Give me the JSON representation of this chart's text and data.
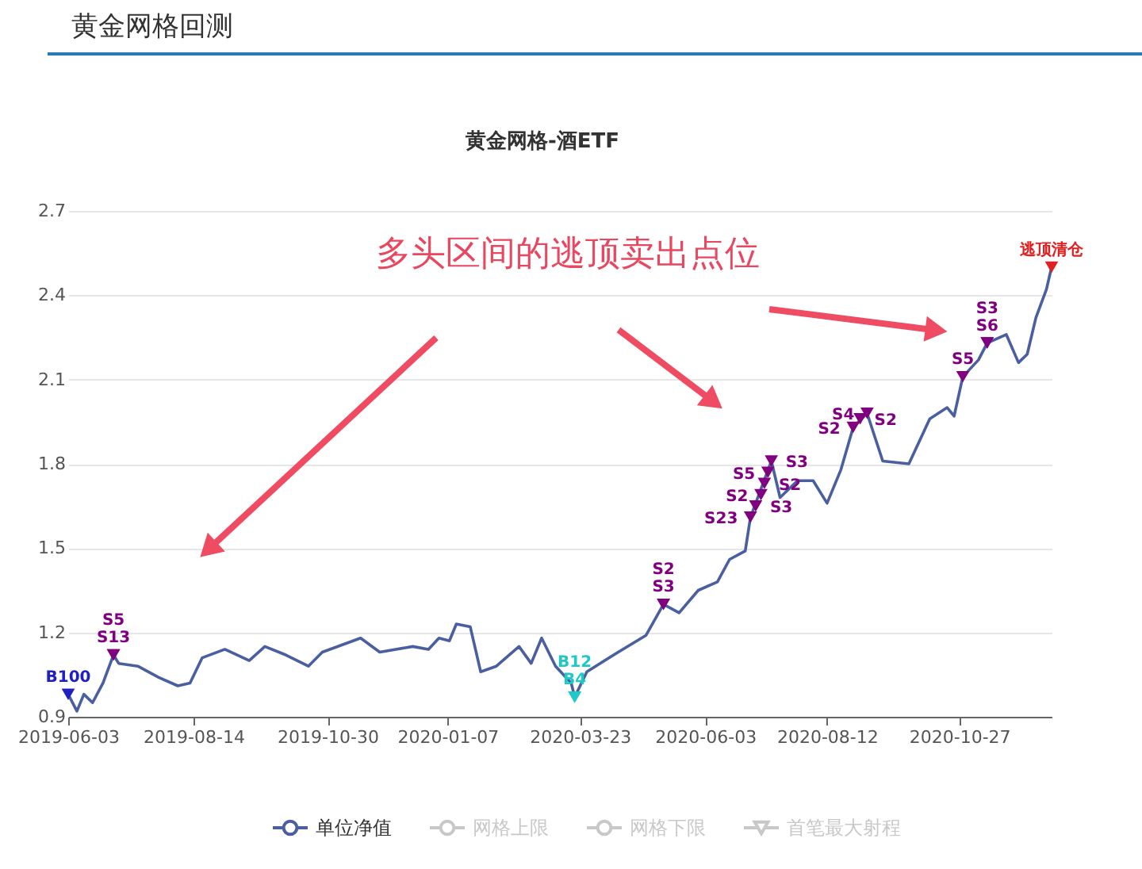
{
  "chart_data": {
    "type": "line",
    "title": "黄金网格回测",
    "subtitle": "黄金网格-酒ETF",
    "annotations": [
      "多头区间的逃顶卖出点位"
    ],
    "x": [
      "2019-06-03",
      "2019-06-08",
      "2019-06-12",
      "2019-06-17",
      "2019-06-23",
      "2019-06-29",
      "2019-07-02",
      "2019-07-13",
      "2019-07-25",
      "2019-08-05",
      "2019-08-12",
      "2019-08-19",
      "2019-09-01",
      "2019-09-15",
      "2019-09-24",
      "2019-10-06",
      "2019-10-19",
      "2019-10-27",
      "2019-11-18",
      "2019-11-29",
      "2019-12-18",
      "2019-12-27",
      "2020-01-02",
      "2020-01-08",
      "2020-01-12",
      "2020-01-20",
      "2020-01-26",
      "2020-02-04",
      "2020-02-17",
      "2020-02-24",
      "2020-03-01",
      "2020-03-09",
      "2020-03-18",
      "2020-03-20",
      "2020-03-27",
      "2020-04-14",
      "2020-04-30",
      "2020-05-10",
      "2020-05-19",
      "2020-05-30",
      "2020-06-10",
      "2020-06-17",
      "2020-06-26",
      "2020-06-29",
      "2020-07-11",
      "2020-07-16",
      "2020-07-26",
      "2020-08-04",
      "2020-08-12",
      "2020-08-20",
      "2020-08-27",
      "2020-09-04",
      "2020-09-13",
      "2020-09-28",
      "2020-10-10",
      "2020-10-20",
      "2020-10-24",
      "2020-10-29",
      "2020-11-07",
      "2020-11-12",
      "2020-11-23",
      "2020-11-30",
      "2020-12-05",
      "2020-12-10",
      "2020-12-16",
      "2020-12-19"
    ],
    "series": [
      {
        "name": "单位净值",
        "color": "#4a5fa0",
        "values": [
          0.98,
          0.92,
          0.98,
          0.95,
          1.02,
          1.12,
          1.09,
          1.08,
          1.04,
          1.01,
          1.02,
          1.11,
          1.14,
          1.1,
          1.15,
          1.12,
          1.08,
          1.13,
          1.18,
          1.13,
          1.15,
          1.14,
          1.18,
          1.17,
          1.23,
          1.22,
          1.06,
          1.08,
          1.15,
          1.09,
          1.18,
          1.08,
          1.02,
          0.97,
          1.06,
          1.13,
          1.19,
          1.3,
          1.27,
          1.35,
          1.38,
          1.46,
          1.49,
          1.61,
          1.81,
          1.68,
          1.74,
          1.74,
          1.66,
          1.78,
          1.93,
          1.98,
          1.81,
          1.8,
          1.96,
          2.0,
          1.97,
          2.11,
          2.17,
          2.23,
          2.26,
          2.16,
          2.19,
          2.32,
          2.42,
          2.5
        ]
      },
      {
        "name": "网格上限",
        "type": "line",
        "color": "#c8c8c8",
        "marker": "circle",
        "values": [
          null,
          null,
          null,
          null,
          null,
          null,
          null,
          null,
          null,
          null,
          null,
          null,
          null,
          null,
          null,
          null,
          null,
          null,
          null,
          null,
          null,
          null,
          null,
          null,
          null,
          null,
          null,
          null,
          null,
          null,
          null,
          null,
          null,
          null,
          null,
          null,
          null,
          null,
          null,
          null,
          null,
          null,
          null,
          null,
          null,
          null,
          null,
          null,
          null,
          null,
          null,
          null,
          null,
          null,
          null,
          null,
          null,
          null,
          null,
          null,
          null,
          null,
          null,
          null,
          null,
          null
        ]
      },
      {
        "name": "网格下限",
        "type": "line",
        "color": "#c8c8c8",
        "marker": "circle",
        "values": [
          null,
          null,
          null,
          null,
          null,
          null,
          null,
          null,
          null,
          null,
          null,
          null,
          null,
          null,
          null,
          null,
          null,
          null,
          null,
          null,
          null,
          null,
          null,
          null,
          null,
          null,
          null,
          null,
          null,
          null,
          null,
          null,
          null,
          null,
          null,
          null,
          null,
          null,
          null,
          null,
          null,
          null,
          null,
          null,
          null,
          null,
          null,
          null,
          null,
          null,
          null,
          null,
          null,
          null,
          null,
          null,
          null,
          null,
          null,
          null,
          null,
          null,
          null,
          null,
          null,
          null
        ]
      },
      {
        "name": "首笔最大射程",
        "type": "line",
        "color": "#c8c8c8",
        "marker": "triangle",
        "values": [
          null,
          null,
          null,
          null,
          null,
          null,
          null,
          null,
          null,
          null,
          null,
          null,
          null,
          null,
          null,
          null,
          null,
          null,
          null,
          null,
          null,
          null,
          null,
          null,
          null,
          null,
          null,
          null,
          null,
          null,
          null,
          null,
          null,
          null,
          null,
          null,
          null,
          null,
          null,
          null,
          null,
          null,
          null,
          null,
          null,
          null,
          null,
          null,
          null,
          null,
          null,
          null,
          null,
          null,
          null,
          null,
          null,
          null,
          null,
          null,
          null,
          null,
          null,
          null,
          null,
          null
        ]
      },
      {
        "type": "scatter",
        "color": "#2020c0",
        "marker": "triangle",
        "x": [
          "2019-06-03"
        ],
        "values": [
          0.98
        ],
        "value_labels": [
          "B100"
        ]
      },
      {
        "type": "scatter",
        "color": "#800080",
        "marker": "triangle",
        "x": [
          "2019-06-29",
          "2019-06-29",
          "2020-05-10",
          "2020-05-10",
          "2020-06-29",
          "2020-07-02",
          "2020-07-05",
          "2020-07-07",
          "2020-07-09",
          "2020-07-11",
          "2020-08-27",
          "2020-08-31",
          "2020-09-04",
          "2020-10-29",
          "2020-11-12",
          "2020-11-12"
        ],
        "values": [
          1.12,
          1.12,
          1.3,
          1.3,
          1.61,
          1.65,
          1.69,
          1.73,
          1.77,
          1.81,
          1.93,
          1.96,
          1.98,
          2.11,
          2.23,
          2.23
        ],
        "value_labels": [
          "S13",
          "S5",
          "S3",
          "S2",
          "S23",
          "S3",
          "S2",
          "S2",
          "S5",
          "S3",
          "S2",
          "S2",
          "S4",
          "S5",
          "S6",
          "S3"
        ]
      },
      {
        "type": "scatter",
        "color": "#20c8c8",
        "marker": "triangle",
        "x": [
          "2020-03-20",
          "2020-03-20"
        ],
        "values": [
          0.97,
          0.97
        ],
        "value_labels": [
          "B4",
          "B12"
        ]
      },
      {
        "type": "scatter",
        "color": "#e02020",
        "marker": "triangle",
        "x": [
          "2020-12-19"
        ],
        "values": [
          2.5
        ],
        "value_labels": [
          "逃顶清仓"
        ]
      }
    ],
    "xlim": [
      "2019-06-03",
      "2020-12-19"
    ],
    "xticks": [
      "2019-06-03",
      "2019-08-14",
      "2019-10-30",
      "2020-01-07",
      "2020-03-23",
      "2020-06-03",
      "2020-08-12",
      "2020-10-27"
    ],
    "ylim": [
      0.9,
      2.7
    ],
    "yticks": [
      0.9,
      1.2,
      1.5,
      1.8,
      2.1,
      2.4,
      2.7
    ],
    "grid": "y",
    "legend": "bottom"
  }
}
